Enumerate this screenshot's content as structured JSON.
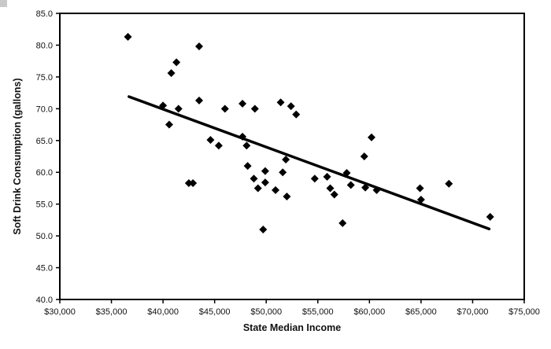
{
  "chart_data": {
    "type": "scatter",
    "title": "",
    "xlabel": "State Median Income",
    "ylabel": "Soft Drink Consumption (gallons)",
    "xlim": [
      30000,
      75000
    ],
    "ylim": [
      40,
      85
    ],
    "grid": false,
    "legend": "none",
    "x_ticks": [
      30000,
      35000,
      40000,
      45000,
      50000,
      55000,
      60000,
      65000,
      70000,
      75000
    ],
    "x_tick_labels": [
      "$30,000",
      "$35,000",
      "$40,000",
      "$45,000",
      "$50,000",
      "$55,000",
      "$60,000",
      "$65,000",
      "$70,000",
      "$75,000"
    ],
    "y_ticks": [
      40,
      45,
      50,
      55,
      60,
      65,
      70,
      75,
      80,
      85
    ],
    "y_tick_labels": [
      "40.0",
      "45.0",
      "50.0",
      "55.0",
      "60.0",
      "65.0",
      "70.0",
      "75.0",
      "80.0",
      "85.0"
    ],
    "marker": {
      "shape": "diamond",
      "color": "#000000",
      "size": 10
    },
    "points": [
      [
        36600,
        81.3
      ],
      [
        40000,
        70.5
      ],
      [
        40600,
        67.5
      ],
      [
        40800,
        75.6
      ],
      [
        41300,
        77.3
      ],
      [
        41500,
        70.0
      ],
      [
        42500,
        58.3
      ],
      [
        42900,
        58.3
      ],
      [
        43500,
        79.8
      ],
      [
        43500,
        71.3
      ],
      [
        44600,
        65.1
      ],
      [
        45400,
        64.2
      ],
      [
        46000,
        70.0
      ],
      [
        47700,
        70.8
      ],
      [
        47700,
        65.6
      ],
      [
        48100,
        64.2
      ],
      [
        48200,
        61.0
      ],
      [
        48800,
        59.0
      ],
      [
        48900,
        70.0
      ],
      [
        49200,
        57.5
      ],
      [
        49700,
        51.0
      ],
      [
        49900,
        60.2
      ],
      [
        49900,
        58.4
      ],
      [
        50900,
        57.2
      ],
      [
        51400,
        71.0
      ],
      [
        51600,
        60.0
      ],
      [
        51900,
        62.0
      ],
      [
        52000,
        56.2
      ],
      [
        52400,
        70.4
      ],
      [
        52900,
        69.1
      ],
      [
        54700,
        59.0
      ],
      [
        55900,
        59.3
      ],
      [
        56200,
        57.5
      ],
      [
        56600,
        56.5
      ],
      [
        57400,
        52.0
      ],
      [
        57800,
        59.9
      ],
      [
        58200,
        58.0
      ],
      [
        59500,
        62.5
      ],
      [
        59600,
        57.6
      ],
      [
        60200,
        65.5
      ],
      [
        60700,
        57.2
      ],
      [
        64900,
        57.5
      ],
      [
        65000,
        55.7
      ],
      [
        67700,
        58.2
      ],
      [
        71700,
        53.0
      ]
    ],
    "trendline": {
      "x1": 36700,
      "y1": 71.9,
      "x2": 71600,
      "y2": 51.1,
      "color": "#000000",
      "width": 3.5
    },
    "axis_color": "#000000",
    "background_color": "#ffffff"
  }
}
